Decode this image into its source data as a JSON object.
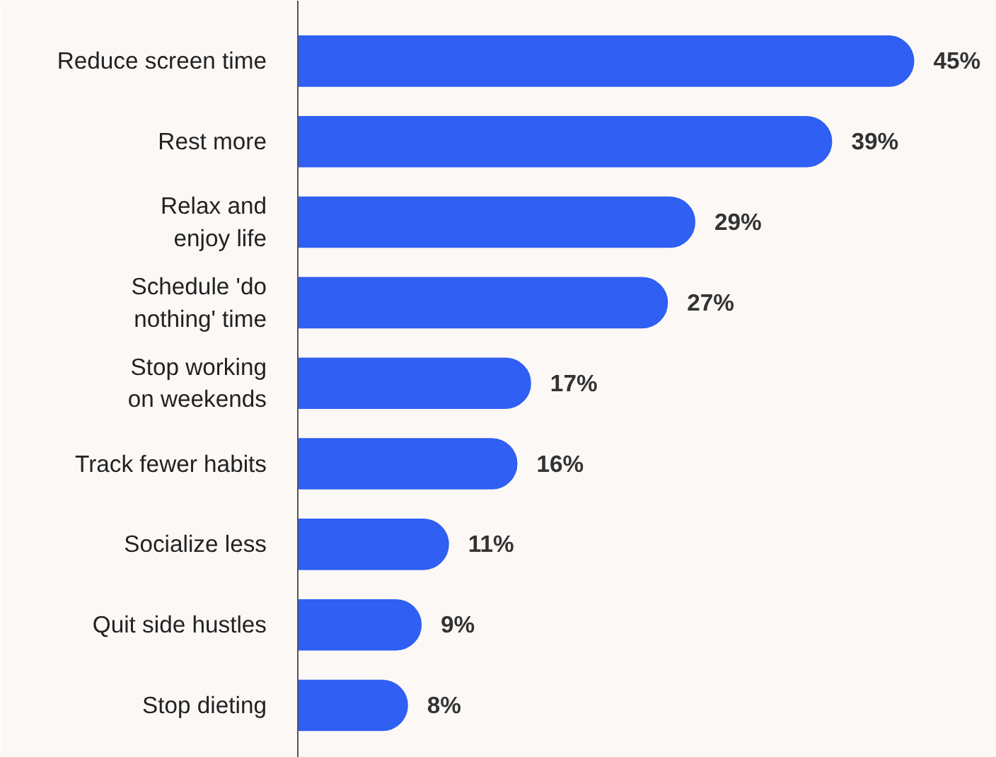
{
  "chart_data": {
    "type": "bar",
    "orientation": "horizontal",
    "categories": [
      "Reduce screen time",
      "Rest more",
      "Relax and\nenjoy life",
      "Schedule 'do\nnothing' time",
      "Stop working\non weekends",
      "Track fewer habits",
      "Socialize less",
      "Quit side hustles",
      "Stop dieting"
    ],
    "values": [
      45,
      39,
      29,
      27,
      17,
      16,
      11,
      9,
      8
    ],
    "value_labels": [
      "45%",
      "39%",
      "29%",
      "27%",
      "17%",
      "16%",
      "11%",
      "9%",
      "8%"
    ],
    "color": "#2f5ff3",
    "grid": false
  }
}
